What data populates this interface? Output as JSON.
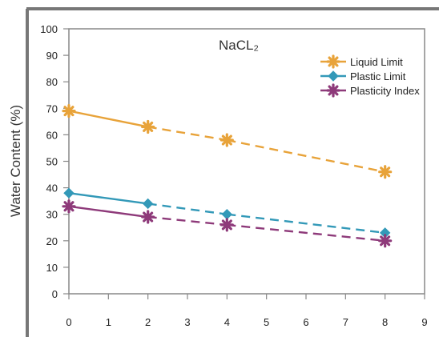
{
  "chart_data": {
    "type": "line",
    "title": "NaCL₂",
    "xlabel": "",
    "ylabel": "Water Content (%)",
    "xlim": [
      0,
      9
    ],
    "ylim": [
      0,
      100
    ],
    "xticks": [
      0,
      1,
      2,
      3,
      4,
      5,
      6,
      7,
      8,
      9
    ],
    "yticks": [
      0,
      10,
      20,
      30,
      40,
      50,
      60,
      70,
      80,
      90,
      100
    ],
    "grid": false,
    "legend": "top-right",
    "series": [
      {
        "name": "Liquid Limit",
        "color": "#E8A33A",
        "marker": "star",
        "x": [
          0,
          2,
          4,
          8
        ],
        "y": [
          69,
          63,
          58,
          46
        ]
      },
      {
        "name": "Plastic Limit",
        "color": "#3399B8",
        "marker": "diamond",
        "x": [
          0,
          2,
          4,
          8
        ],
        "y": [
          38,
          34,
          30,
          23
        ]
      },
      {
        "name": "Plasticity Index",
        "color": "#8E3A7A",
        "marker": "star",
        "x": [
          0,
          2,
          4,
          8
        ],
        "y": [
          33,
          29,
          26,
          20
        ]
      }
    ]
  }
}
